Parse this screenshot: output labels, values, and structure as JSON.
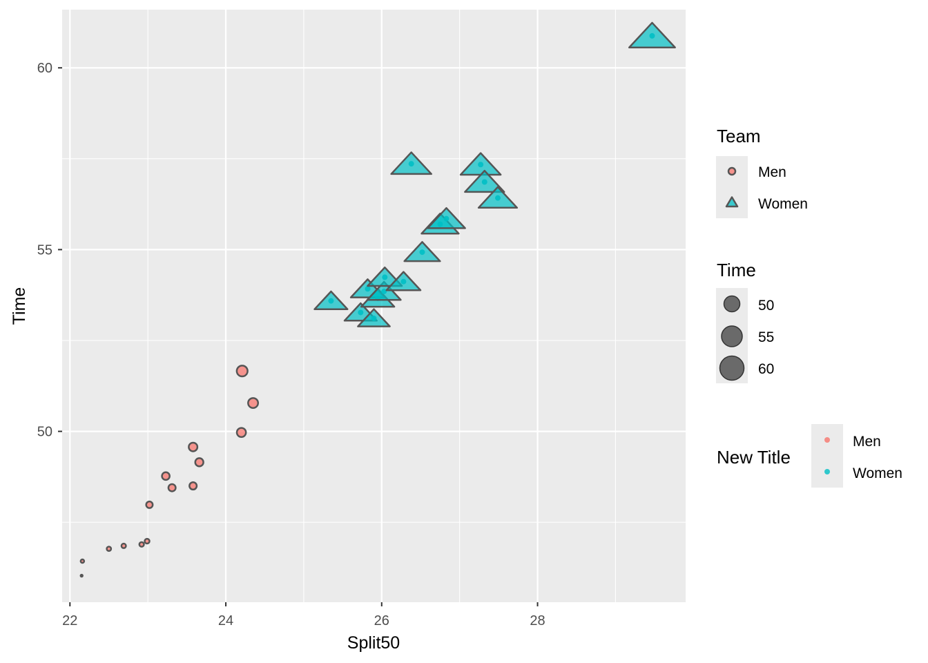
{
  "chart_data": {
    "type": "scatter",
    "xlabel": "Split50",
    "ylabel": "Time",
    "xlim": [
      21.9,
      29.9
    ],
    "ylim": [
      45.3,
      61.6
    ],
    "x_ticks": [
      22,
      24,
      26,
      28
    ],
    "y_ticks": [
      50,
      55,
      60
    ],
    "grid": true,
    "legend_position": "right",
    "colors": {
      "Men": "#F8766D",
      "Women": "#00BFC4",
      "outline": "#555555",
      "panel": "#EBEBEB",
      "grid": "#FFFFFF"
    },
    "series": [
      {
        "name": "Men",
        "shape": "circle",
        "points": [
          {
            "x": 22.15,
            "y": 46.03
          },
          {
            "x": 22.16,
            "y": 46.43
          },
          {
            "x": 22.5,
            "y": 46.77
          },
          {
            "x": 22.69,
            "y": 46.85
          },
          {
            "x": 22.92,
            "y": 46.89
          },
          {
            "x": 22.99,
            "y": 46.98
          },
          {
            "x": 23.02,
            "y": 47.98
          },
          {
            "x": 23.23,
            "y": 48.77
          },
          {
            "x": 23.31,
            "y": 48.45
          },
          {
            "x": 23.58,
            "y": 48.5
          },
          {
            "x": 23.58,
            "y": 49.57
          },
          {
            "x": 23.66,
            "y": 49.15
          },
          {
            "x": 24.2,
            "y": 49.97
          },
          {
            "x": 24.21,
            "y": 51.66
          },
          {
            "x": 24.35,
            "y": 50.78
          }
        ]
      },
      {
        "name": "Women",
        "shape": "triangle",
        "points": [
          {
            "x": 25.35,
            "y": 53.59
          },
          {
            "x": 25.73,
            "y": 53.27
          },
          {
            "x": 25.82,
            "y": 53.92
          },
          {
            "x": 25.9,
            "y": 53.11
          },
          {
            "x": 25.95,
            "y": 53.66
          },
          {
            "x": 26.03,
            "y": 53.85
          },
          {
            "x": 26.04,
            "y": 54.24
          },
          {
            "x": 26.28,
            "y": 54.12
          },
          {
            "x": 26.38,
            "y": 57.36
          },
          {
            "x": 26.52,
            "y": 54.93
          },
          {
            "x": 26.75,
            "y": 55.7
          },
          {
            "x": 26.83,
            "y": 55.85
          },
          {
            "x": 27.27,
            "y": 57.34
          },
          {
            "x": 27.32,
            "y": 56.86
          },
          {
            "x": 27.49,
            "y": 56.42
          },
          {
            "x": 29.47,
            "y": 60.88
          }
        ]
      }
    ],
    "legends": [
      {
        "title": "Team",
        "entries": [
          "Men",
          "Women"
        ]
      },
      {
        "title": "Time",
        "entries": [
          "50",
          "55",
          "60"
        ]
      },
      {
        "title": "New Title",
        "entries": [
          "Men",
          "Women"
        ]
      }
    ]
  }
}
